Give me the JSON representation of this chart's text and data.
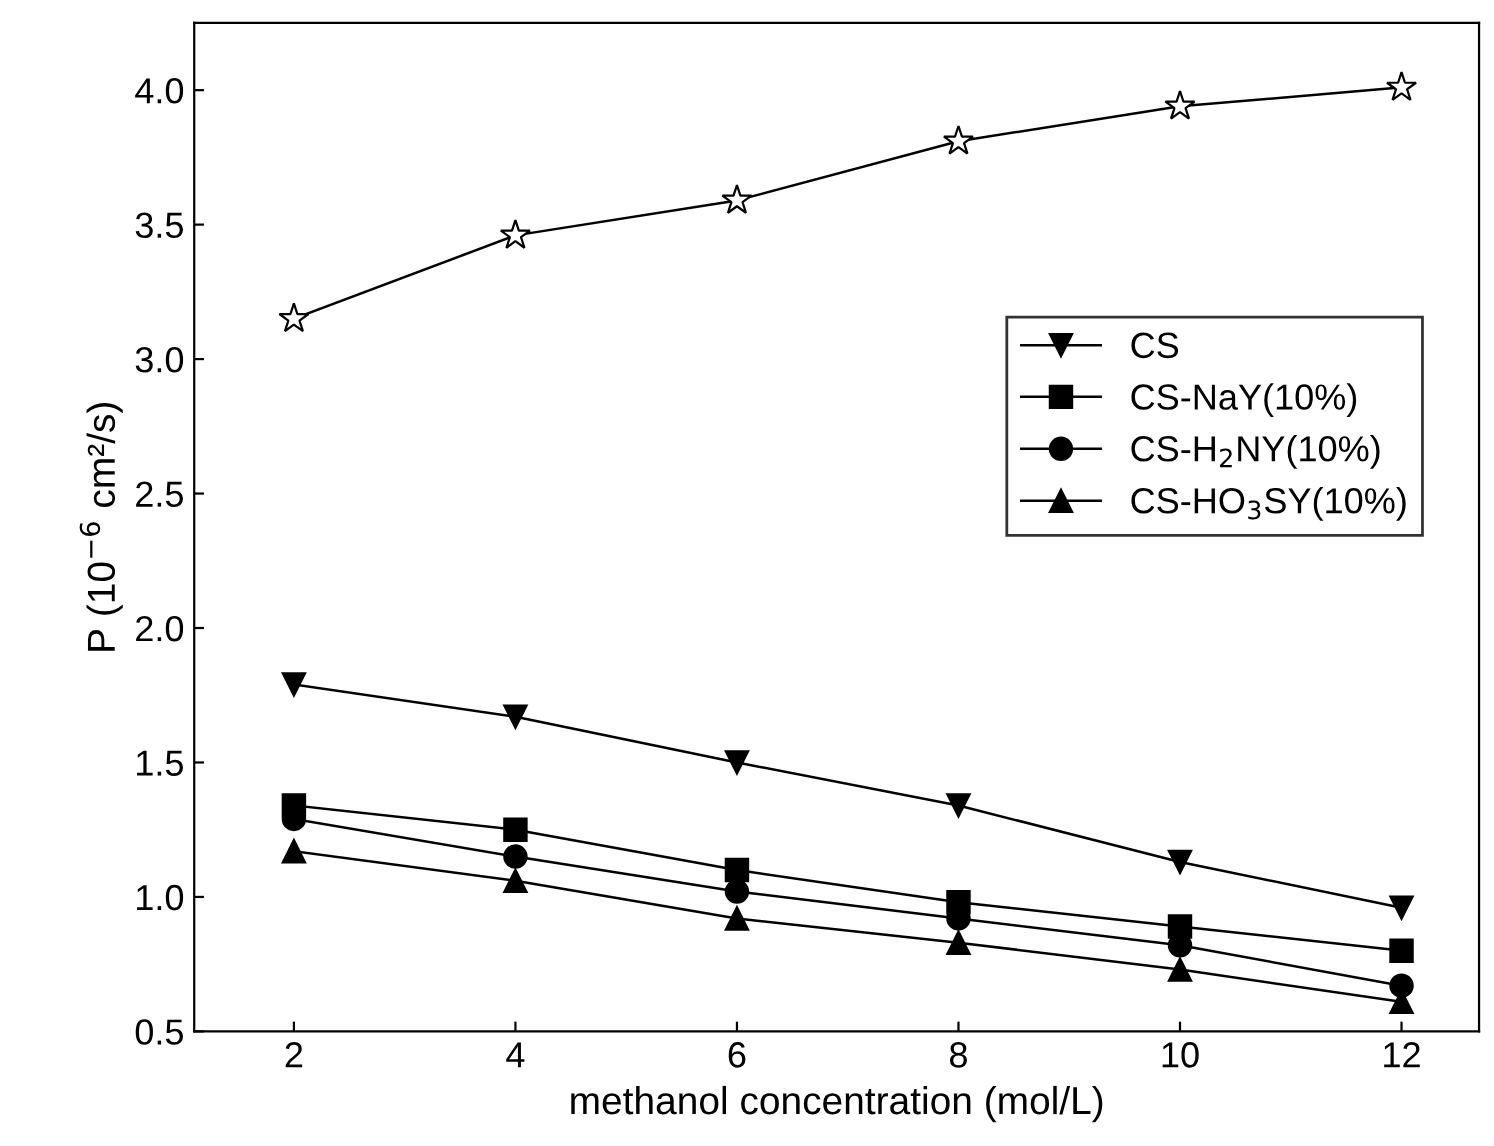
{
  "chart_data": {
    "type": "line",
    "xlabel": "methanol concentration (mol/L)",
    "ylabel": "P (10$^{−6}$ cm²/s)",
    "x": [
      2,
      4,
      6,
      8,
      10,
      12
    ],
    "series": [
      {
        "color": "#000000",
        "marker": "star",
        "values": [
          3.15,
          3.46,
          3.59,
          3.81,
          3.94,
          4.01
        ]
      },
      {
        "name": "CS",
        "color": "#000000",
        "marker": "triangle_down",
        "values": [
          1.79,
          1.67,
          1.5,
          1.34,
          1.13,
          0.96
        ]
      },
      {
        "name": "CS-NaY(10%)",
        "color": "#000000",
        "marker": "square",
        "values": [
          1.34,
          1.25,
          1.1,
          0.98,
          0.89,
          0.8
        ]
      },
      {
        "name": "CS-H$_{2}$NY(10%)",
        "color": "#000000",
        "marker": "circle",
        "values": [
          1.29,
          1.15,
          1.02,
          0.92,
          0.82,
          0.67
        ]
      },
      {
        "name": "CS-HO$_{3}$SY(10%)",
        "color": "#000000",
        "marker": "triangle",
        "values": [
          1.17,
          1.06,
          0.92,
          0.83,
          0.73,
          0.61
        ]
      }
    ],
    "xlim": [
      1.1,
      12.7
    ],
    "ylim": [
      0.5,
      4.25
    ],
    "xticks": [
      2,
      4,
      6,
      8,
      10,
      12
    ],
    "yticks": [
      {
        "value": 0.5,
        "label": "0.5"
      },
      {
        "value": 1.0,
        "label": "1.0"
      },
      {
        "value": 1.5,
        "label": "1.5"
      },
      {
        "value": 2.0,
        "label": "2.0"
      },
      {
        "value": 2.5,
        "label": "2.5"
      },
      {
        "value": 3.0,
        "label": "3.0"
      },
      {
        "value": 3.5,
        "label": "3.5"
      },
      {
        "value": 4.0,
        "label": "4.0"
      }
    ],
    "grid": false,
    "legend": "right",
    "line_style": "solid"
  }
}
